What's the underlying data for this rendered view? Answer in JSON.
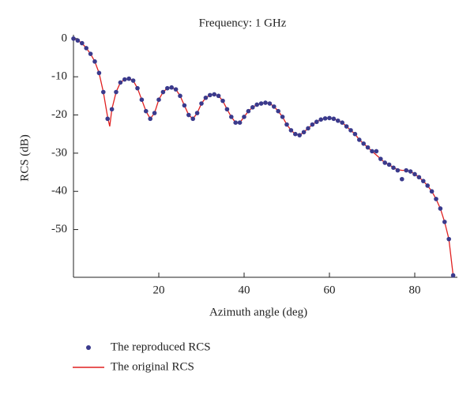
{
  "chart_data": {
    "type": "scatter",
    "title": "Frequency: 1 GHz",
    "xlabel": "Azimuth angle (deg)",
    "ylabel": "RCS (dB)",
    "xlim": [
      0,
      90
    ],
    "ylim": [
      -62.5,
      1
    ],
    "xticks": [
      20,
      40,
      60,
      80
    ],
    "yticks": [
      0,
      -10,
      -20,
      -30,
      -40,
      -50
    ],
    "legend": "bottom-left",
    "series": [
      {
        "name": "The reproduced RCS",
        "color": "#3a3a8c",
        "mode": "markers",
        "x": [
          0,
          1,
          2,
          3,
          4,
          5,
          6,
          7,
          8,
          9,
          10,
          11,
          12,
          13,
          14,
          15,
          16,
          17,
          18,
          19,
          20,
          21,
          22,
          23,
          24,
          25,
          26,
          27,
          28,
          29,
          30,
          31,
          32,
          33,
          34,
          35,
          36,
          37,
          38,
          39,
          40,
          41,
          42,
          43,
          44,
          45,
          46,
          47,
          48,
          49,
          50,
          51,
          52,
          53,
          54,
          55,
          56,
          57,
          58,
          59,
          60,
          61,
          62,
          63,
          64,
          65,
          66,
          67,
          68,
          69,
          70,
          71,
          72,
          73,
          74,
          75,
          76,
          77,
          78,
          79,
          80,
          81,
          82,
          83,
          84,
          85,
          86,
          87,
          88,
          89
        ],
        "values": [
          0,
          -0.5,
          -1.2,
          -2.5,
          -4,
          -6,
          -9,
          -14,
          -21,
          -18.5,
          -14,
          -11.5,
          -10.7,
          -10.5,
          -11,
          -13,
          -16,
          -19,
          -21,
          -19.5,
          -16,
          -14,
          -13,
          -12.8,
          -13.3,
          -15,
          -17.5,
          -20,
          -21,
          -19.5,
          -17,
          -15.5,
          -14.8,
          -14.6,
          -15,
          -16.3,
          -18.5,
          -20.5,
          -22,
          -22,
          -20.5,
          -19,
          -18,
          -17.3,
          -17,
          -16.8,
          -17,
          -17.8,
          -19,
          -20.5,
          -22.5,
          -24,
          -25,
          -25.3,
          -24.5,
          -23.5,
          -22.5,
          -21.8,
          -21.2,
          -20.9,
          -20.8,
          -21,
          -21.5,
          -22,
          -23,
          -24,
          -25,
          -26.5,
          -27.5,
          -28.5,
          -29.5,
          -29.5,
          -31.5,
          -32.5,
          -33,
          -33.8,
          -34.5,
          -36.8,
          -34.5,
          -34.8,
          -35.5,
          -36.3,
          -37.3,
          -38.5,
          -40,
          -42,
          -44.5,
          -48,
          -52.5,
          -62
        ]
      },
      {
        "name": "The original RCS",
        "color": "#e02020",
        "mode": "line",
        "x": [
          0,
          1,
          2,
          3,
          4,
          5,
          6,
          7,
          8,
          8.5,
          9,
          10,
          11,
          12,
          13,
          14,
          15,
          16,
          17,
          18,
          19,
          20,
          21,
          22,
          23,
          24,
          25,
          26,
          27,
          28,
          29,
          30,
          31,
          32,
          33,
          34,
          35,
          36,
          37,
          38,
          39,
          40,
          41,
          42,
          43,
          44,
          45,
          46,
          47,
          48,
          49,
          50,
          51,
          52,
          53,
          54,
          55,
          56,
          57,
          58,
          59,
          60,
          61,
          62,
          63,
          64,
          65,
          66,
          67,
          68,
          69,
          70,
          71,
          72,
          73,
          74,
          75,
          76,
          77,
          78,
          79,
          80,
          81,
          82,
          83,
          84,
          85,
          86,
          87,
          88,
          89
        ],
        "values": [
          0,
          -0.5,
          -1.2,
          -2.5,
          -4,
          -6,
          -9,
          -14,
          -20.5,
          -23,
          -18.5,
          -14,
          -11.5,
          -10.7,
          -10.5,
          -11,
          -13,
          -16,
          -19,
          -21,
          -19.5,
          -16,
          -14,
          -13,
          -12.8,
          -13.3,
          -15,
          -17.5,
          -20,
          -21,
          -19.5,
          -17,
          -15.5,
          -14.8,
          -14.6,
          -15,
          -16.3,
          -18.5,
          -20.5,
          -22,
          -22,
          -20.5,
          -19,
          -18,
          -17.3,
          -17,
          -16.8,
          -17,
          -17.8,
          -19,
          -20.5,
          -22.5,
          -24,
          -25,
          -25.3,
          -24.5,
          -23.5,
          -22.5,
          -21.8,
          -21.2,
          -20.9,
          -20.8,
          -21,
          -21.5,
          -22,
          -23,
          -24,
          -25,
          -26.5,
          -27.5,
          -28.5,
          -29.5,
          -30.5,
          -31.5,
          -32.5,
          -33,
          -33.8,
          -34.3,
          -34.5,
          -34.5,
          -34.8,
          -35.5,
          -36.3,
          -37.3,
          -38.5,
          -40,
          -42,
          -44.5,
          -48,
          -52.5,
          -62
        ]
      }
    ]
  }
}
